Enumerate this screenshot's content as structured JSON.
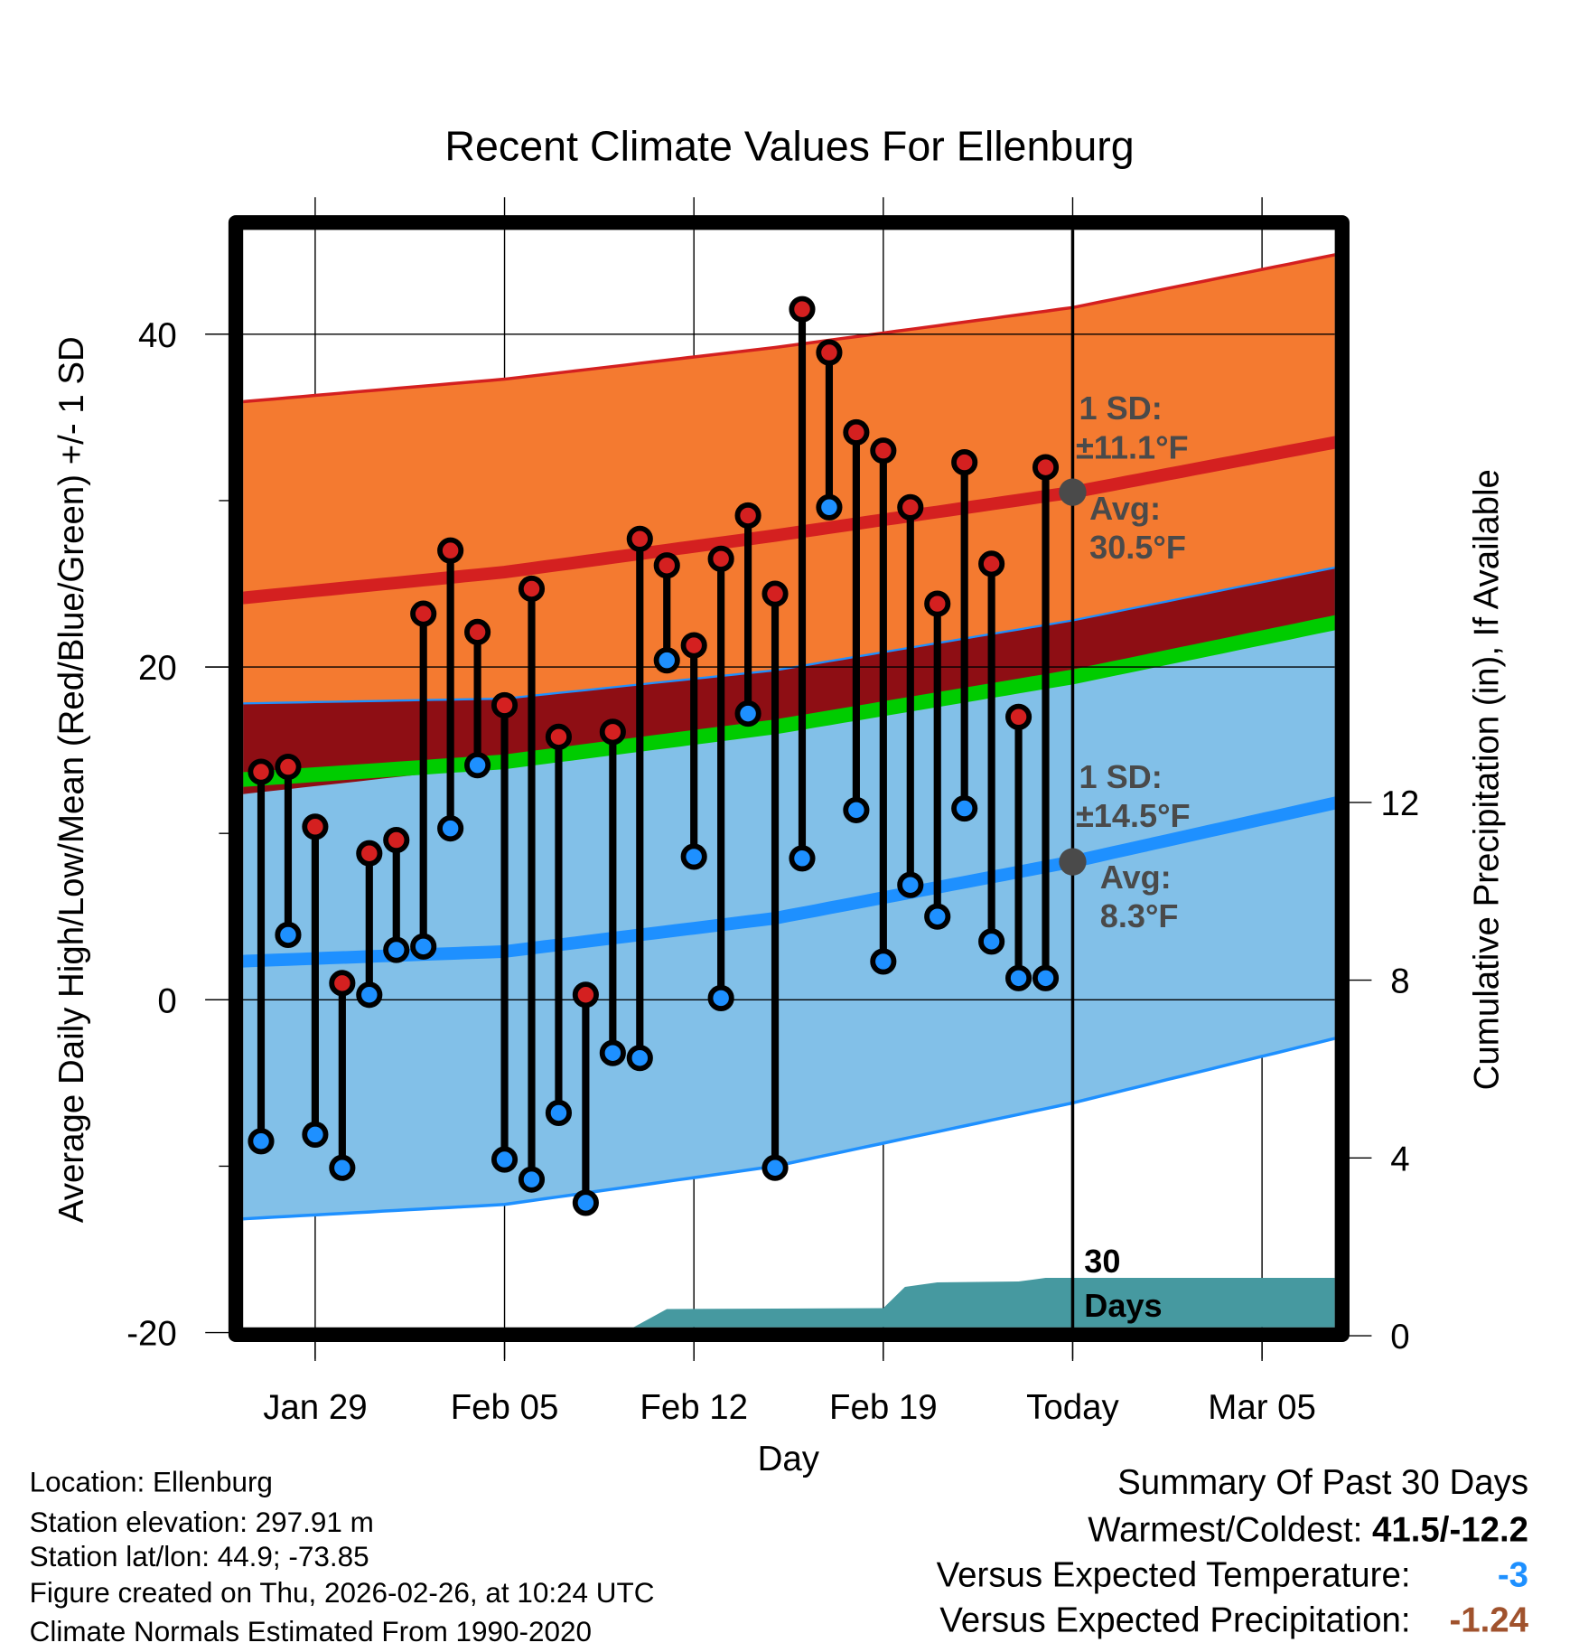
{
  "chart_data": {
    "type": "line",
    "title": "Recent Climate Values For Ellenburg",
    "xlabel": "Day",
    "ylabel": "Average Daily High/Low/Mean (Red/Blue/Green) +/- 1 SD",
    "y2label": "Cumulative Precipitation (in), If Available",
    "ylim": [
      -20,
      46.3
    ],
    "y2lim": [
      0,
      15.7
    ],
    "xlim_days_from_first": [
      -0.66,
      39.7
    ],
    "x_ticks": [
      {
        "label": "Jan 29",
        "day": 2
      },
      {
        "label": "Feb 05",
        "day": 9
      },
      {
        "label": "Feb 12",
        "day": 16
      },
      {
        "label": "Feb 19",
        "day": 23
      },
      {
        "label": "Today",
        "day": 30
      },
      {
        "label": "Mar 05",
        "day": 37
      }
    ],
    "y_ticks": [
      {
        "label": "40",
        "v": 40
      },
      {
        "label": "20",
        "v": 20
      },
      {
        "label": "0",
        "v": 0
      },
      {
        "label": "-20",
        "v": -20
      }
    ],
    "y_minor_ticks": [
      30,
      10,
      -10
    ],
    "y2_ticks": [
      {
        "label": "0",
        "v": 0
      },
      {
        "label": "4",
        "v": 4
      },
      {
        "label": "8",
        "v": 8
      },
      {
        "label": "12",
        "v": 12
      }
    ],
    "grid": true,
    "dates": [
      "Jan 27",
      "Jan 28",
      "Jan 29",
      "Jan 30",
      "Jan 31",
      "Feb 01",
      "Feb 02",
      "Feb 03",
      "Feb 04",
      "Feb 05",
      "Feb 06",
      "Feb 07",
      "Feb 08",
      "Feb 09",
      "Feb 10",
      "Feb 11",
      "Feb 12",
      "Feb 13",
      "Feb 14",
      "Feb 15",
      "Feb 16",
      "Feb 17",
      "Feb 18",
      "Feb 19",
      "Feb 20",
      "Feb 21",
      "Feb 22",
      "Feb 23",
      "Feb 24",
      "Feb 25"
    ],
    "highs": [
      13.7,
      14.0,
      10.4,
      1.0,
      8.8,
      9.6,
      23.2,
      27.0,
      22.1,
      17.7,
      24.7,
      15.8,
      0.3,
      16.1,
      27.7,
      26.1,
      21.3,
      26.5,
      29.1,
      24.4,
      41.5,
      38.9,
      34.1,
      33.0,
      29.6,
      23.8,
      32.3,
      26.2,
      17.0,
      32.0
    ],
    "lows": [
      -8.5,
      3.9,
      -8.1,
      -10.1,
      0.3,
      3.0,
      3.2,
      10.3,
      14.1,
      -9.6,
      -10.8,
      -6.8,
      -12.2,
      -3.2,
      -3.5,
      20.4,
      8.6,
      0.1,
      17.2,
      -10.1,
      8.5,
      29.6,
      11.4,
      2.3,
      6.9,
      5.0,
      11.5,
      3.5,
      1.3,
      1.3
    ],
    "normals": {
      "days": [
        -1,
        9,
        19,
        30,
        41
      ],
      "high_avg": [
        24.1,
        25.7,
        27.9,
        30.5,
        33.9
      ],
      "high_sd": [
        11.8,
        11.6,
        11.3,
        11.1,
        11.3
      ],
      "low_avg": [
        2.3,
        2.9,
        4.9,
        8.3,
        12.3
      ],
      "low_sd": [
        15.5,
        15.2,
        14.9,
        14.5,
        14.1
      ]
    },
    "precip_cumulative": {
      "days": [
        -0.66,
        13.2,
        15,
        23,
        23.8,
        25,
        28,
        29,
        39.7
      ],
      "values": [
        0,
        0,
        0.6,
        0.62,
        1.1,
        1.2,
        1.22,
        1.3,
        1.3
      ]
    },
    "annotations": {
      "high_sd_label": "1 SD:",
      "high_sd_value": "±11.1°F",
      "high_avg_label": "Avg:",
      "high_avg_value": "30.5°F",
      "low_sd_label": "1 SD:",
      "low_sd_value": "±14.5°F",
      "low_avg_label": "Avg:",
      "low_avg_value": "8.3°F",
      "window_num": "30",
      "window_unit": "Days",
      "today_day": 30
    },
    "colors": {
      "high_band": "#f47a30",
      "overlap_band": "#8e0e14",
      "low_band": "#82c0e8",
      "high_line": "#d42020",
      "low_line": "#1e90ff",
      "mean_line": "#00cc00",
      "precip": "#4699a0",
      "annotation": "#4a4a4a"
    }
  },
  "footer": {
    "location": "Location: Ellenburg",
    "elevation": "Station elevation: 297.91 m",
    "latlon": "Station lat/lon: 44.9; -73.85",
    "created": "Figure created on Thu, 2026-02-26, at 10:24 UTC",
    "normals": "Climate Normals Estimated From 1990-2020"
  },
  "summary": {
    "title": "Summary Of Past 30 Days",
    "warmest_label": "Warmest/Coldest: ",
    "warmest_value": "41.5/-12.2",
    "temp_label": "Versus Expected Temperature:",
    "temp_value": "-3",
    "precip_label": "Versus Expected Precipitation:",
    "precip_value": "-1.24",
    "temp_color": "#1e90ff",
    "precip_color": "#a0522d"
  }
}
